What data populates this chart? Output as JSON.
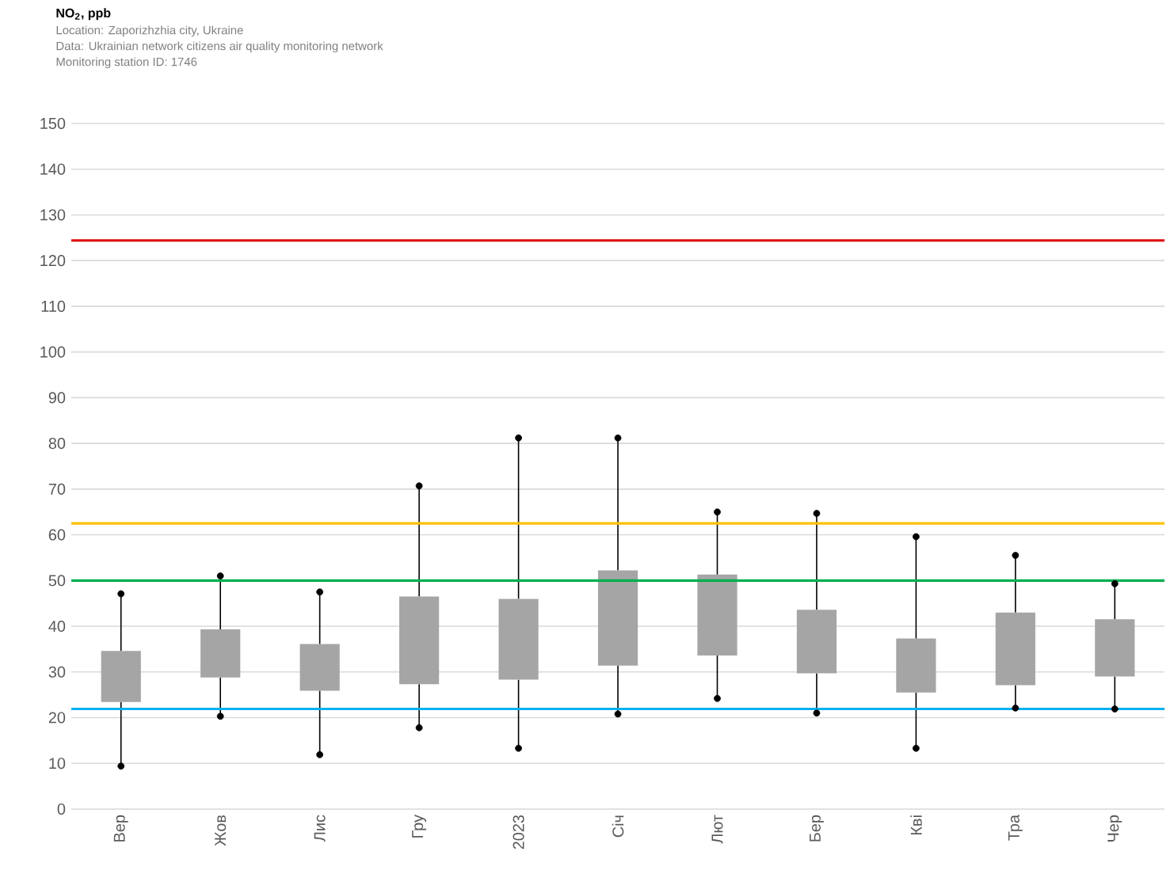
{
  "chart_data": {
    "type": "box",
    "title": "NO$_{2}$, ppb",
    "subtitle": "Location: Zaporizhzhia  city, Ukraine",
    "annotations": [
      "Data: Ukrainian network citizens air quality monitoring network",
      "Monitoring station ID: 1746"
    ],
    "categories": [
      "Вер",
      "Жов",
      "Лис",
      "Гру",
      "2023",
      "Січ",
      "Лют",
      "Бер",
      "Кві",
      "Тра",
      "Чер"
    ],
    "boxes": [
      {
        "low": 9.4,
        "q1": 23.4,
        "q3": 34.6,
        "high": 47.1
      },
      {
        "low": 20.3,
        "q1": 28.8,
        "q3": 39.3,
        "high": 51.0
      },
      {
        "low": 11.9,
        "q1": 25.9,
        "q3": 36.1,
        "high": 47.5
      },
      {
        "low": 17.8,
        "q1": 27.3,
        "q3": 46.5,
        "high": 70.7
      },
      {
        "low": 13.3,
        "q1": 28.3,
        "q3": 46.0,
        "high": 81.2
      },
      {
        "low": 20.8,
        "q1": 31.4,
        "q3": 52.2,
        "high": 81.2
      },
      {
        "low": 24.2,
        "q1": 33.6,
        "q3": 51.3,
        "high": 65.0
      },
      {
        "low": 21.0,
        "q1": 29.7,
        "q3": 43.6,
        "high": 64.7
      },
      {
        "low": 13.3,
        "q1": 25.5,
        "q3": 37.3,
        "high": 59.6
      },
      {
        "low": 22.1,
        "q1": 27.1,
        "q3": 43.0,
        "high": 55.5
      },
      {
        "low": 21.9,
        "q1": 29.0,
        "q3": 41.5,
        "high": 49.3
      }
    ],
    "color": "#a5a5a5",
    "series": [
      {
        "type": "scatter",
        "color": "#000000",
        "marker": "circle",
        "values": [
          9.4,
          20.3,
          11.9,
          17.8,
          13.3,
          20.8,
          24.2,
          21.0,
          13.3,
          22.1,
          21.9
        ]
      },
      {
        "type": "scatter",
        "color": "#000000",
        "marker": "circle",
        "values": [
          47.1,
          51.0,
          47.5,
          70.7,
          81.2,
          81.2,
          65.0,
          64.7,
          59.6,
          55.5,
          49.3
        ]
      }
    ],
    "ylim": [
      0,
      150
    ],
    "yticks": [
      0,
      10,
      20,
      30,
      40,
      50,
      60,
      70,
      80,
      90,
      100,
      110,
      120,
      130,
      140,
      150
    ],
    "grid": "y",
    "ref_lines": [
      {
        "axis": "y",
        "value": 124.4,
        "color": "#e00000"
      },
      {
        "axis": "y",
        "value": 62.5,
        "color": "#ffc000"
      },
      {
        "axis": "y",
        "value": 50,
        "color": "#00b050"
      },
      {
        "axis": "y",
        "value": 21.9,
        "color": "#00b0f0"
      }
    ]
  }
}
